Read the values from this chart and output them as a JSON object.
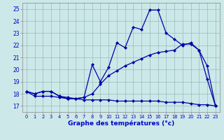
{
  "title": "Graphe des températures (°c)",
  "bg_color": "#cce8e8",
  "line_color": "#0000aa",
  "xlim": [
    -0.5,
    23.5
  ],
  "ylim": [
    16.5,
    25.5
  ],
  "yticks": [
    17,
    18,
    19,
    20,
    21,
    22,
    23,
    24,
    25
  ],
  "xticks": [
    0,
    1,
    2,
    3,
    4,
    5,
    6,
    7,
    8,
    9,
    10,
    11,
    12,
    13,
    14,
    15,
    16,
    17,
    18,
    19,
    20,
    21,
    22,
    23
  ],
  "series_temp": [
    18.2,
    18.0,
    18.2,
    18.2,
    17.8,
    17.7,
    17.6,
    17.7,
    20.4,
    19.0,
    20.2,
    22.2,
    21.8,
    23.5,
    23.3,
    24.9,
    24.9,
    23.0,
    22.5,
    22.0,
    22.2,
    21.6,
    19.2,
    17.0
  ],
  "series_ressentie": [
    18.2,
    18.0,
    18.2,
    18.2,
    17.8,
    17.6,
    17.6,
    17.7,
    18.0,
    18.8,
    19.5,
    19.9,
    20.3,
    20.6,
    20.9,
    21.2,
    21.4,
    21.5,
    21.6,
    22.1,
    22.1,
    21.6,
    20.3,
    17.0
  ],
  "series_rosee": [
    18.2,
    17.8,
    17.8,
    17.8,
    17.7,
    17.6,
    17.6,
    17.5,
    17.5,
    17.5,
    17.5,
    17.4,
    17.4,
    17.4,
    17.4,
    17.4,
    17.4,
    17.3,
    17.3,
    17.3,
    17.2,
    17.1,
    17.1,
    17.0
  ],
  "grid_color": "#99bbbb",
  "marker": "D",
  "markersize": 2.0,
  "linewidth": 0.9
}
